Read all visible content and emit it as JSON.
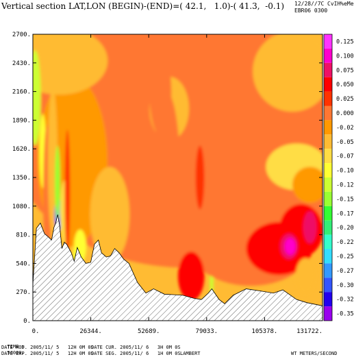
{
  "header": {
    "title": "Vertical section LAT,LON (BEGIN)-(END)=( 42.1,   1.0)-( 41.3,  -0.1)",
    "date": "12/28//7C",
    "user": "CvIH%eMec",
    "run": "EBR06 0300"
  },
  "footer": {
    "time_label": "TIME =",
    "time_value": "54000.",
    "left_lines": [
      "DATE MOD. 2005/11/ 5   12H 0M 0S",
      "DATE EXP. 2005/11/ 5   12H 0M 0S"
    ],
    "mid_lines": [
      "DATE CUR. 2005/11/ 6   3H 0M 0S",
      "DATE SEG. 2005/11/ 6   1H 0M 0S"
    ],
    "projection": "LAMBERT",
    "units": "WT METERS/SECOND"
  },
  "chart_data": {
    "type": "heatmap",
    "variable": "WT",
    "units": "METERS/SECOND",
    "x_ticks": [
      "0.",
      "26344.",
      "52689.",
      "79033.",
      "105378.",
      "131722."
    ],
    "x_tick_values": [
      0,
      26344,
      52689,
      79033,
      105378,
      131722
    ],
    "y_ticks": [
      "0.",
      "270.",
      "540.",
      "810.",
      "1080.",
      "1350.",
      "1620.",
      "1890.",
      "2160.",
      "2430.",
      "2700."
    ],
    "y_tick_values": [
      0,
      270,
      540,
      810,
      1080,
      1350,
      1620,
      1890,
      2160,
      2430,
      2700
    ],
    "xlim": [
      0,
      131722
    ],
    "ylim": [
      0,
      2700
    ],
    "colorbar": {
      "levels": [
        "0.125",
        "0.100",
        "0.075",
        "0.050",
        "0.025",
        "0.000",
        "-0.025",
        "-0.050",
        "-0.075",
        "-0.100",
        "-0.125",
        "-0.150",
        "-0.175",
        "-0.200",
        "-0.225",
        "-0.250",
        "-0.275",
        "-0.300",
        "-0.325",
        "-0.350"
      ],
      "colors": [
        "#ff33ff",
        "#ff00cc",
        "#ee1166",
        "#ff0000",
        "#ff3300",
        "#ff7733",
        "#ff9900",
        "#ffbb33",
        "#ffdd44",
        "#ffff33",
        "#ccff33",
        "#99ff33",
        "#33ff33",
        "#33ee77",
        "#33ffcc",
        "#33ddff",
        "#3399ff",
        "#3355ff",
        "#2200ee",
        "#9900ee"
      ]
    },
    "terrain_profile": [
      [
        0,
        340
      ],
      [
        1600,
        870
      ],
      [
        3400,
        920
      ],
      [
        5300,
        820
      ],
      [
        7000,
        790
      ],
      [
        8500,
        760
      ],
      [
        9600,
        880
      ],
      [
        10400,
        920
      ],
      [
        11300,
        1000
      ],
      [
        12200,
        890
      ],
      [
        13200,
        680
      ],
      [
        14300,
        740
      ],
      [
        15400,
        720
      ],
      [
        17500,
        640
      ],
      [
        18800,
        560
      ],
      [
        20200,
        690
      ],
      [
        22000,
        600
      ],
      [
        24100,
        540
      ],
      [
        26300,
        550
      ],
      [
        28000,
        720
      ],
      [
        29800,
        760
      ],
      [
        31200,
        640
      ],
      [
        33400,
        600
      ],
      [
        35300,
        610
      ],
      [
        37200,
        680
      ],
      [
        39200,
        640
      ],
      [
        41300,
        580
      ],
      [
        43700,
        540
      ],
      [
        47600,
        360
      ],
      [
        51400,
        260
      ],
      [
        54900,
        300
      ],
      [
        59800,
        250
      ],
      [
        68200,
        240
      ],
      [
        73400,
        210
      ],
      [
        76700,
        200
      ],
      [
        79800,
        260
      ],
      [
        81400,
        300
      ],
      [
        84700,
        200
      ],
      [
        87200,
        160
      ],
      [
        91100,
        240
      ],
      [
        97000,
        300
      ],
      [
        103500,
        280
      ],
      [
        109400,
        260
      ],
      [
        113700,
        290
      ],
      [
        119900,
        200
      ],
      [
        124600,
        170
      ],
      [
        131722,
        140
      ]
    ],
    "fields": [
      {
        "value": 0.0,
        "cx": 70000,
        "cy": 1700,
        "rx": 80000,
        "ry": 1200
      },
      {
        "value": -0.01,
        "cx": 18000,
        "cy": 1500,
        "rx": 16000,
        "ry": 800
      },
      {
        "value": -0.05,
        "cx": 12000,
        "cy": 2450,
        "rx": 22000,
        "ry": 320
      },
      {
        "value": -0.05,
        "cx": 118000,
        "cy": 2350,
        "rx": 18000,
        "ry": 380
      },
      {
        "value": -0.06,
        "cx": 120000,
        "cy": 1450,
        "rx": 14000,
        "ry": 220
      },
      {
        "value": -0.05,
        "cx": 62000,
        "cy": 2000,
        "rx": 9000,
        "ry": 300
      },
      {
        "value": 0.01,
        "cx": 61000,
        "cy": 1350,
        "rx": 6000,
        "ry": 800
      },
      {
        "value": 0.01,
        "cx": 81000,
        "cy": 1250,
        "rx": 5000,
        "ry": 750
      },
      {
        "value": 0.01,
        "cx": 98000,
        "cy": 1000,
        "rx": 9000,
        "ry": 650
      },
      {
        "value": 0.01,
        "cx": 58000,
        "cy": 2150,
        "rx": 5000,
        "ry": 400
      },
      {
        "value": 0.015,
        "cx": 42000,
        "cy": 1150,
        "rx": 7000,
        "ry": 450
      },
      {
        "value": 0.03,
        "cx": 76000,
        "cy": 1350,
        "rx": 2000,
        "ry": 300
      },
      {
        "value": 0.02,
        "cx": 40000,
        "cy": 900,
        "rx": 5000,
        "ry": 220
      },
      {
        "value": -0.03,
        "cx": 35000,
        "cy": 1000,
        "rx": 9000,
        "ry": 450
      },
      {
        "value": -0.12,
        "cx": 1000,
        "cy": 2100,
        "rx": 2600,
        "ry": 450
      },
      {
        "value": -0.1,
        "cx": 4500,
        "cy": 1600,
        "rx": 1600,
        "ry": 350
      },
      {
        "value": 0.015,
        "cx": 6500,
        "cy": 1150,
        "rx": 1800,
        "ry": 700
      },
      {
        "value": -0.03,
        "cx": 9000,
        "cy": 1500,
        "rx": 2200,
        "ry": 700
      },
      {
        "value": -0.3,
        "cx": 11500,
        "cy": 1000,
        "rx": 1600,
        "ry": 160
      },
      {
        "value": -0.15,
        "cx": 11200,
        "cy": 1300,
        "rx": 1200,
        "ry": 350
      },
      {
        "value": -0.06,
        "cx": 14300,
        "cy": 1020,
        "rx": 2000,
        "ry": 300
      },
      {
        "value": 0.035,
        "cx": 15700,
        "cy": 1200,
        "rx": 1200,
        "ry": 600
      },
      {
        "value": -0.08,
        "cx": 21500,
        "cy": 700,
        "rx": 2800,
        "ry": 160
      },
      {
        "value": -0.1,
        "cx": 19000,
        "cy": 600,
        "rx": 900,
        "ry": 100
      },
      {
        "value": -0.12,
        "cx": 81300,
        "cy": 400,
        "rx": 900,
        "ry": 220
      },
      {
        "value": 0.01,
        "cx": 99000,
        "cy": 650,
        "rx": 26000,
        "ry": 320
      },
      {
        "value": 0.05,
        "cx": 72000,
        "cy": 420,
        "rx": 6000,
        "ry": 230
      },
      {
        "value": 0.07,
        "cx": 71500,
        "cy": 390,
        "rx": 3000,
        "ry": 160
      },
      {
        "value": 0.05,
        "cx": 112000,
        "cy": 680,
        "rx": 15000,
        "ry": 250
      },
      {
        "value": 0.06,
        "cx": 122000,
        "cy": 850,
        "rx": 10000,
        "ry": 250
      },
      {
        "value": 0.08,
        "cx": 116500,
        "cy": 700,
        "rx": 4000,
        "ry": 120
      },
      {
        "value": 0.1,
        "cx": 117000,
        "cy": 700,
        "rx": 2500,
        "ry": 80
      },
      {
        "value": 0.08,
        "cx": 126000,
        "cy": 880,
        "rx": 3000,
        "ry": 150
      },
      {
        "value": -0.05,
        "cx": 124000,
        "cy": 420,
        "rx": 4500,
        "ry": 170
      },
      {
        "value": -0.02,
        "cx": 126000,
        "cy": 1280,
        "rx": 8000,
        "ry": 170
      }
    ]
  }
}
